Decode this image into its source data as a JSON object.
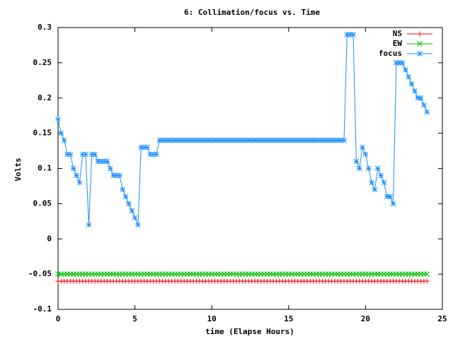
{
  "chart_data": {
    "type": "line",
    "title": "6: Collimation/focus vs. Time",
    "xlabel": "time (Elapse Hours)",
    "ylabel": "Volts",
    "xlim": [
      0,
      25
    ],
    "xticks": [
      0,
      5,
      10,
      15,
      20,
      25
    ],
    "ylim": [
      -0.1,
      0.3
    ],
    "yticks": [
      -0.1,
      -0.05,
      0,
      0.05,
      0.1,
      0.15,
      0.2,
      0.25,
      0.3
    ],
    "grid": false,
    "legend": "top right",
    "x": [
      0,
      0.2,
      0.4,
      0.6,
      0.8,
      1,
      1.2,
      1.4,
      1.6,
      1.8,
      2,
      2.2,
      2.4,
      2.6,
      2.8,
      3,
      3.2,
      3.4,
      3.6,
      3.8,
      4,
      4.2,
      4.4,
      4.6,
      4.8,
      5,
      5.2,
      5.4,
      5.6,
      5.8,
      6,
      6.2,
      6.4,
      6.6,
      6.8,
      7,
      7.2,
      7.4,
      7.6,
      7.8,
      8,
      8.2,
      8.4,
      8.6,
      8.8,
      9,
      9.2,
      9.4,
      9.6,
      9.8,
      10,
      10.2,
      10.4,
      10.6,
      10.8,
      11,
      11.2,
      11.4,
      11.6,
      11.8,
      12,
      12.2,
      12.4,
      12.6,
      12.8,
      13,
      13.2,
      13.4,
      13.6,
      13.8,
      14,
      14.2,
      14.4,
      14.6,
      14.8,
      15,
      15.2,
      15.4,
      15.6,
      15.8,
      16,
      16.2,
      16.4,
      16.6,
      16.8,
      17,
      17.2,
      17.4,
      17.6,
      17.8,
      18,
      18.2,
      18.4,
      18.6,
      18.8,
      19,
      19.2,
      19.4,
      19.6,
      19.8,
      20,
      20.2,
      20.4,
      20.6,
      20.8,
      21,
      21.2,
      21.4,
      21.6,
      21.8,
      22,
      22.2,
      22.4,
      22.6,
      22.8,
      23,
      23.2,
      23.4,
      23.6,
      23.8,
      24
    ],
    "series": [
      {
        "name": "NS",
        "color": "#ff0000",
        "marker": "plus",
        "values": [
          -0.06,
          -0.06,
          -0.06,
          -0.06,
          -0.06,
          -0.06,
          -0.06,
          -0.06,
          -0.06,
          -0.06,
          -0.06,
          -0.06,
          -0.06,
          -0.06,
          -0.06,
          -0.06,
          -0.06,
          -0.06,
          -0.06,
          -0.06,
          -0.06,
          -0.06,
          -0.06,
          -0.06,
          -0.06,
          -0.06,
          -0.06,
          -0.06,
          -0.06,
          -0.06,
          -0.06,
          -0.06,
          -0.06,
          -0.06,
          -0.06,
          -0.06,
          -0.06,
          -0.06,
          -0.06,
          -0.06,
          -0.06,
          -0.06,
          -0.06,
          -0.06,
          -0.06,
          -0.06,
          -0.06,
          -0.06,
          -0.06,
          -0.06,
          -0.06,
          -0.06,
          -0.06,
          -0.06,
          -0.06,
          -0.06,
          -0.06,
          -0.06,
          -0.06,
          -0.06,
          -0.06,
          -0.06,
          -0.06,
          -0.06,
          -0.06,
          -0.06,
          -0.06,
          -0.06,
          -0.06,
          -0.06,
          -0.06,
          -0.06,
          -0.06,
          -0.06,
          -0.06,
          -0.06,
          -0.06,
          -0.06,
          -0.06,
          -0.06,
          -0.06,
          -0.06,
          -0.06,
          -0.06,
          -0.06,
          -0.06,
          -0.06,
          -0.06,
          -0.06,
          -0.06,
          -0.06,
          -0.06,
          -0.06,
          -0.06,
          -0.06,
          -0.06,
          -0.06,
          -0.06,
          -0.06,
          -0.06,
          -0.06,
          -0.06,
          -0.06,
          -0.06,
          -0.06,
          -0.06,
          -0.06,
          -0.06,
          -0.06,
          -0.06,
          -0.06,
          -0.06,
          -0.06,
          -0.06,
          -0.06,
          -0.06,
          -0.06,
          -0.06,
          -0.06,
          -0.06,
          -0.06
        ]
      },
      {
        "name": "EW",
        "color": "#00c000",
        "marker": "cross",
        "values": [
          -0.05,
          -0.05,
          -0.05,
          -0.05,
          -0.05,
          -0.05,
          -0.05,
          -0.05,
          -0.05,
          -0.05,
          -0.05,
          -0.05,
          -0.05,
          -0.05,
          -0.05,
          -0.05,
          -0.05,
          -0.05,
          -0.05,
          -0.05,
          -0.05,
          -0.05,
          -0.05,
          -0.05,
          -0.05,
          -0.05,
          -0.05,
          -0.05,
          -0.05,
          -0.05,
          -0.05,
          -0.05,
          -0.05,
          -0.05,
          -0.05,
          -0.05,
          -0.05,
          -0.05,
          -0.05,
          -0.05,
          -0.05,
          -0.05,
          -0.05,
          -0.05,
          -0.05,
          -0.05,
          -0.05,
          -0.05,
          -0.05,
          -0.05,
          -0.05,
          -0.05,
          -0.05,
          -0.05,
          -0.05,
          -0.05,
          -0.05,
          -0.05,
          -0.05,
          -0.05,
          -0.05,
          -0.05,
          -0.05,
          -0.05,
          -0.05,
          -0.05,
          -0.05,
          -0.05,
          -0.05,
          -0.05,
          -0.05,
          -0.05,
          -0.05,
          -0.05,
          -0.05,
          -0.05,
          -0.05,
          -0.05,
          -0.05,
          -0.05,
          -0.05,
          -0.05,
          -0.05,
          -0.05,
          -0.05,
          -0.05,
          -0.05,
          -0.05,
          -0.05,
          -0.05,
          -0.05,
          -0.05,
          -0.05,
          -0.05,
          -0.05,
          -0.05,
          -0.05,
          -0.05,
          -0.05,
          -0.05,
          -0.05,
          -0.05,
          -0.05,
          -0.05,
          -0.05,
          -0.05,
          -0.05,
          -0.05,
          -0.05,
          -0.05,
          -0.05,
          -0.05,
          -0.05,
          -0.05,
          -0.05,
          -0.05,
          -0.05,
          -0.05,
          -0.05,
          -0.05,
          -0.05
        ]
      },
      {
        "name": "focus",
        "color": "#1e8fff",
        "marker": "star",
        "values": [
          0.17,
          0.15,
          0.14,
          0.12,
          0.12,
          0.1,
          0.09,
          0.08,
          0.12,
          0.12,
          0.02,
          0.12,
          0.12,
          0.11,
          0.11,
          0.11,
          0.11,
          0.1,
          0.09,
          0.09,
          0.09,
          0.07,
          0.06,
          0.05,
          0.04,
          0.03,
          0.02,
          0.13,
          0.13,
          0.13,
          0.12,
          0.12,
          0.12,
          0.14,
          0.14,
          0.14,
          0.14,
          0.14,
          0.14,
          0.14,
          0.14,
          0.14,
          0.14,
          0.14,
          0.14,
          0.14,
          0.14,
          0.14,
          0.14,
          0.14,
          0.14,
          0.14,
          0.14,
          0.14,
          0.14,
          0.14,
          0.14,
          0.14,
          0.14,
          0.14,
          0.14,
          0.14,
          0.14,
          0.14,
          0.14,
          0.14,
          0.14,
          0.14,
          0.14,
          0.14,
          0.14,
          0.14,
          0.14,
          0.14,
          0.14,
          0.14,
          0.14,
          0.14,
          0.14,
          0.14,
          0.14,
          0.14,
          0.14,
          0.14,
          0.14,
          0.14,
          0.14,
          0.14,
          0.14,
          0.14,
          0.14,
          0.14,
          0.14,
          0.14,
          0.29,
          0.29,
          0.29,
          0.11,
          0.1,
          0.13,
          0.12,
          0.1,
          0.08,
          0.07,
          0.1,
          0.09,
          0.08,
          0.06,
          0.06,
          0.05,
          0.25,
          0.25,
          0.25,
          0.24,
          0.23,
          0.22,
          0.21,
          0.2,
          0.2,
          0.19,
          0.18
        ]
      }
    ]
  }
}
